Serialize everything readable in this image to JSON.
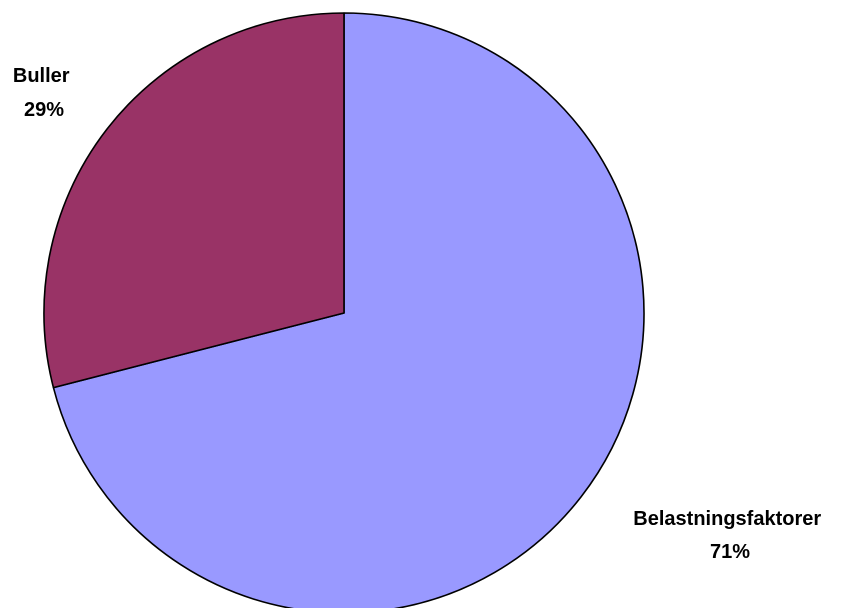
{
  "chart_data": {
    "type": "pie",
    "title": "",
    "start": "12 o'clock",
    "direction": "clockwise",
    "slices": [
      {
        "label": "Belastningsfaktorer",
        "value": 71,
        "value_label": "71%",
        "color": "#9999FF"
      },
      {
        "label": "Buller",
        "value": 29,
        "value_label": "29%",
        "color": "#993366"
      }
    ]
  }
}
